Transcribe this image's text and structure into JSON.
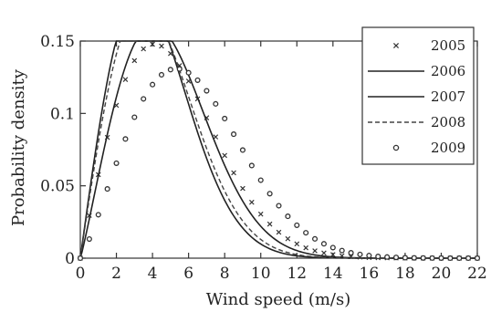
{
  "chart_data": {
    "type": "line",
    "title": "",
    "xlabel": "Wind speed (m/s)",
    "ylabel": "Probability density",
    "xlim": [
      0,
      22
    ],
    "ylim": [
      0,
      0.15
    ],
    "x_ticks": [
      0,
      2,
      4,
      6,
      8,
      10,
      12,
      14,
      16,
      18,
      20,
      22
    ],
    "y_ticks": [
      {
        "value": 0,
        "label": "0"
      },
      {
        "value": 0.05,
        "label": "0.05"
      },
      {
        "value": 0.1,
        "label": "0.1"
      },
      {
        "value": 0.15,
        "label": "0.15"
      }
    ],
    "grid": false,
    "legend_position": "top-right",
    "series": [
      {
        "name": "2005",
        "style": "x-marker",
        "weibull_k": 2.0,
        "weibull_c": 5.8
      },
      {
        "name": "2006",
        "style": "solid",
        "weibull_k": 2.0,
        "weibull_c": 4.7
      },
      {
        "name": "2007",
        "style": "solid",
        "weibull_k": 2.1,
        "weibull_c": 5.5
      },
      {
        "name": "2008",
        "style": "dashed",
        "weibull_k": 2.0,
        "weibull_c": 4.9
      },
      {
        "name": "2009",
        "style": "circle-marker",
        "weibull_k": 2.2,
        "weibull_c": 7.0
      }
    ]
  }
}
